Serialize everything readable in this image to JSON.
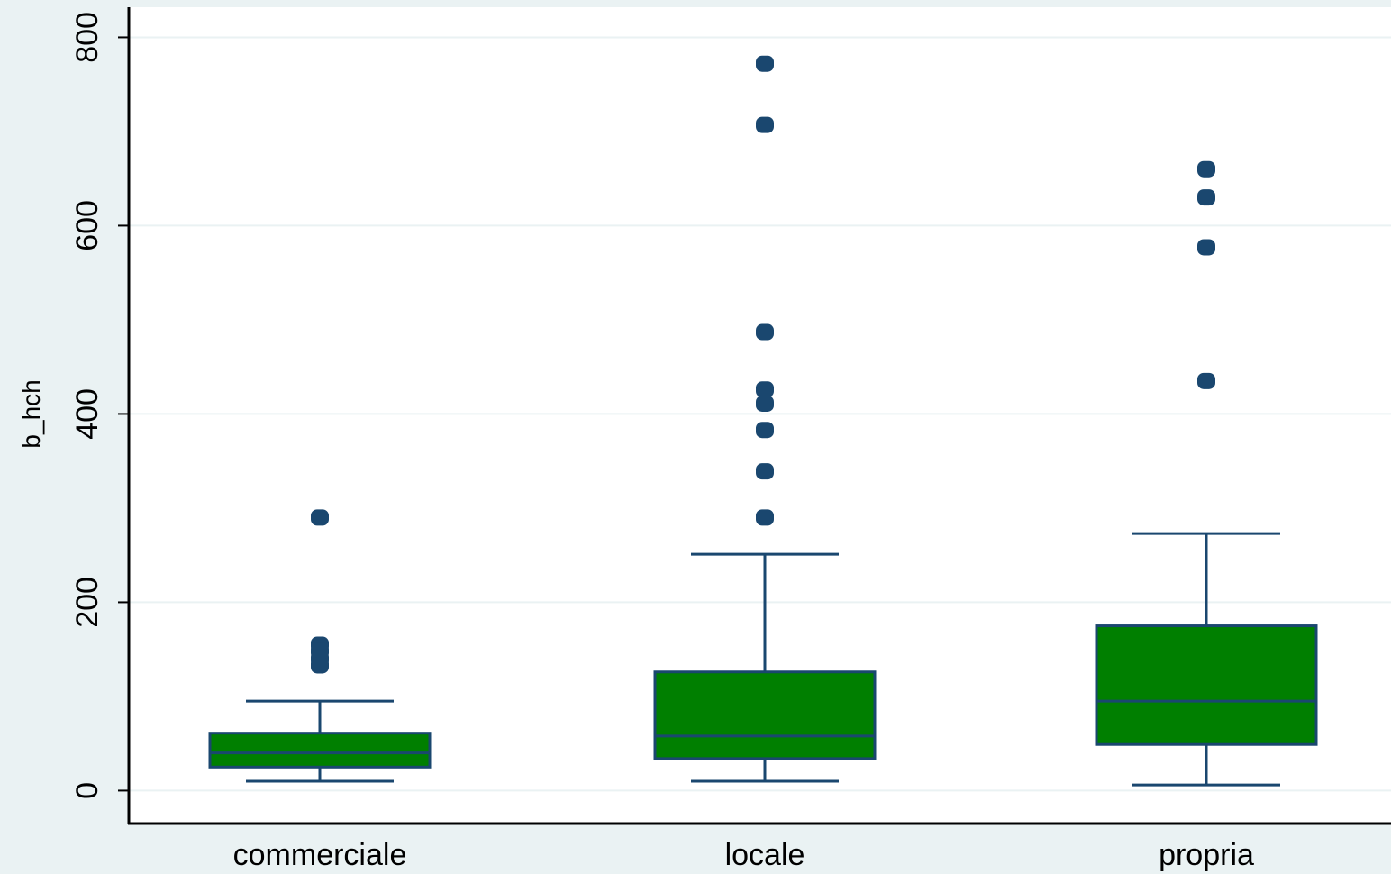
{
  "chart_data": {
    "type": "box",
    "title": "",
    "xlabel": "",
    "ylabel": "b_hch",
    "ylim": [
      -35,
      832
    ],
    "yticks": [
      0,
      200,
      400,
      600,
      800
    ],
    "categories": [
      "commerciale",
      "locale",
      "propria"
    ],
    "grid": true,
    "legend": "none",
    "colors": {
      "background": "#eaf2f3",
      "plot_background": "#ffffff",
      "box_fill": "#007f00",
      "box_edge": "#1a476f",
      "outlier": "#1a476f",
      "gridline": "#eaf2f3",
      "axis": "#000000"
    },
    "boxes": [
      {
        "category": "commerciale",
        "whisker_low": 10,
        "q1": 25,
        "median": 40,
        "q3": 61,
        "whisker_high": 95,
        "outliers": [
          290,
          155,
          148,
          140,
          133
        ]
      },
      {
        "category": "locale",
        "whisker_low": 10,
        "q1": 34,
        "median": 58,
        "q3": 126,
        "whisker_high": 251,
        "outliers": [
          772,
          707,
          487,
          426,
          411,
          383,
          339,
          290
        ]
      },
      {
        "category": "propria",
        "whisker_low": 6,
        "q1": 49,
        "median": 95,
        "q3": 175,
        "whisker_high": 273,
        "outliers": [
          660,
          630,
          577,
          435
        ]
      }
    ]
  }
}
